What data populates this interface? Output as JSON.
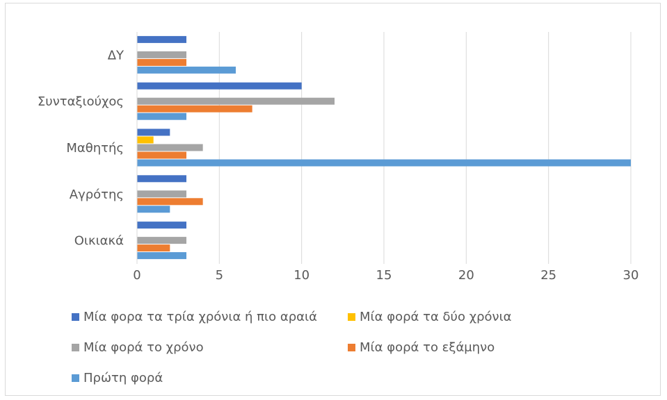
{
  "chart_data": {
    "type": "bar",
    "orientation": "horizontal",
    "categories": [
      "ΔΥ",
      "Συνταξιούχος",
      "Μαθητής",
      "Αγρότης",
      "Οικιακά"
    ],
    "series": [
      {
        "name": "Μία φορα τα τρία χρόνια ή πιο αραιά",
        "color": "#4472C4",
        "values": [
          3,
          10,
          2,
          3,
          3
        ]
      },
      {
        "name": "Μία φορά τα δύο χρόνια",
        "color": "#FFC000",
        "values": [
          0,
          0,
          1,
          0,
          0
        ]
      },
      {
        "name": "Μία φορά το χρόνο",
        "color": "#A5A5A5",
        "values": [
          3,
          12,
          4,
          3,
          3
        ]
      },
      {
        "name": "Μία φορά το εξάμηνο",
        "color": "#ED7D31",
        "values": [
          3,
          7,
          3,
          4,
          2
        ]
      },
      {
        "name": "Πρώτη φορά",
        "color": "#5B9BD5",
        "values": [
          6,
          3,
          30,
          2,
          3
        ]
      }
    ],
    "xlim": [
      0,
      30
    ],
    "xticks": [
      "0",
      "5",
      "10",
      "15",
      "20",
      "25",
      "30"
    ],
    "grid": true,
    "legend_position": "bottom",
    "title": "",
    "xlabel": "",
    "ylabel": ""
  }
}
